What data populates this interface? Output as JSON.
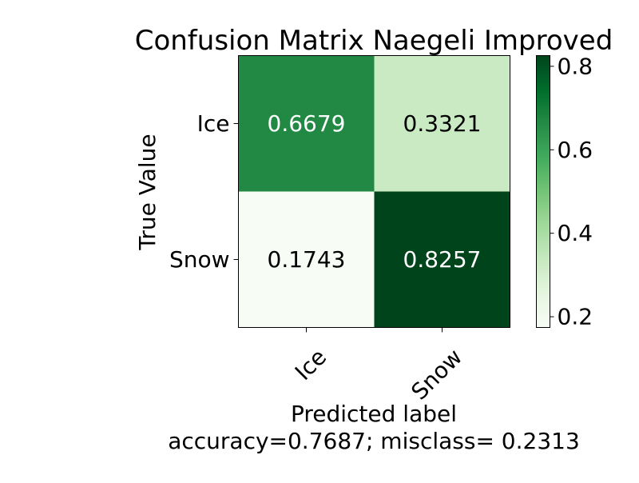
{
  "chart_data": {
    "type": "heatmap",
    "title": "Confusion Matrix Naegeli Improved",
    "ylabel": "True Value",
    "xlabel": "Predicted label",
    "footer": "accuracy=0.7687; misclass= 0.2313",
    "x_categories": [
      "Ice",
      "Snow"
    ],
    "y_categories": [
      "Ice",
      "Snow"
    ],
    "values": [
      [
        0.6679,
        0.3321
      ],
      [
        0.1743,
        0.8257
      ]
    ],
    "value_labels": [
      [
        "0.6679",
        "0.3321"
      ],
      [
        "0.1743",
        "0.8257"
      ]
    ],
    "colorscale": "Greens",
    "colorbar": {
      "range": [
        0.1743,
        0.8257
      ],
      "ticks": [
        0.2,
        0.4,
        0.6,
        0.8
      ],
      "tick_labels": [
        "0.2",
        "0.4",
        "0.6",
        "0.8"
      ]
    },
    "grid": false
  }
}
